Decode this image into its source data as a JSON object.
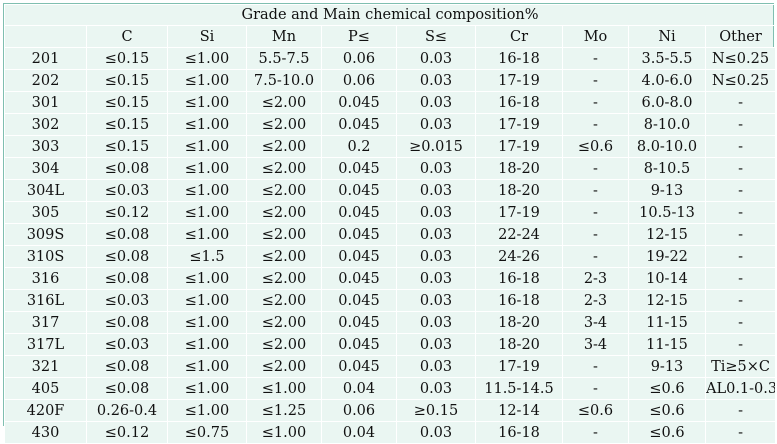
{
  "table": {
    "title": "Grade and Main chemical composition%",
    "headers": [
      "",
      "C",
      "Si",
      "Mn",
      "P≤",
      "S≤",
      "Cr",
      "Mo",
      "Ni",
      "Other"
    ],
    "rows": [
      [
        "201",
        "≤0.15",
        "≤1.00",
        "5.5-7.5",
        "0.06",
        "0.03",
        "16-18",
        "-",
        "3.5-5.5",
        "N≤0.25"
      ],
      [
        "202",
        "≤0.15",
        "≤1.00",
        "7.5-10.0",
        "0.06",
        "0.03",
        "17-19",
        "-",
        "4.0-6.0",
        "N≤0.25"
      ],
      [
        "301",
        "≤0.15",
        "≤1.00",
        "≤2.00",
        "0.045",
        "0.03",
        "16-18",
        "-",
        "6.0-8.0",
        "-"
      ],
      [
        "302",
        "≤0.15",
        "≤1.00",
        "≤2.00",
        "0.045",
        "0.03",
        "17-19",
        "-",
        "8-10.0",
        "-"
      ],
      [
        "303",
        "≤0.15",
        "≤1.00",
        "≤2.00",
        "0.2",
        "≥0.015",
        "17-19",
        "≤0.6",
        "8.0-10.0",
        "-"
      ],
      [
        "304",
        "≤0.08",
        "≤1.00",
        "≤2.00",
        "0.045",
        "0.03",
        "18-20",
        "-",
        "8-10.5",
        "-"
      ],
      [
        "304L",
        "≤0.03",
        "≤1.00",
        "≤2.00",
        "0.045",
        "0.03",
        "18-20",
        "-",
        "9-13",
        "-"
      ],
      [
        "305",
        "≤0.12",
        "≤1.00",
        "≤2.00",
        "0.045",
        "0.03",
        "17-19",
        "-",
        "10.5-13",
        "-"
      ],
      [
        "309S",
        "≤0.08",
        "≤1.00",
        "≤2.00",
        "0.045",
        "0.03",
        "22-24",
        "-",
        "12-15",
        "-"
      ],
      [
        "310S",
        "≤0.08",
        "≤1.5",
        "≤2.00",
        "0.045",
        "0.03",
        "24-26",
        "-",
        "19-22",
        "-"
      ],
      [
        "316",
        "≤0.08",
        "≤1.00",
        "≤2.00",
        "0.045",
        "0.03",
        "16-18",
        "2-3",
        "10-14",
        "-"
      ],
      [
        "316L",
        "≤0.03",
        "≤1.00",
        "≤2.00",
        "0.045",
        "0.03",
        "16-18",
        "2-3",
        "12-15",
        "-"
      ],
      [
        "317",
        "≤0.08",
        "≤1.00",
        "≤2.00",
        "0.045",
        "0.03",
        "18-20",
        "3-4",
        "11-15",
        "-"
      ],
      [
        "317L",
        "≤0.03",
        "≤1.00",
        "≤2.00",
        "0.045",
        "0.03",
        "18-20",
        "3-4",
        "11-15",
        "-"
      ],
      [
        "321",
        "≤0.08",
        "≤1.00",
        "≤2.00",
        "0.045",
        "0.03",
        "17-19",
        "-",
        "9-13",
        "Ti≥5×C"
      ],
      [
        "405",
        "≤0.08",
        "≤1.00",
        "≤1.00",
        "0.04",
        "0.03",
        "11.5-14.5",
        "-",
        "≤0.6",
        "AL0.1-0.3"
      ],
      [
        "420F",
        "0.26-0.4",
        "≤1.00",
        "≤1.25",
        "0.06",
        "≥0.15",
        "12-14",
        "≤0.6",
        "≤0.6",
        "-"
      ],
      [
        "430",
        "≤0.12",
        "≤0.75",
        "≤1.00",
        "0.04",
        "0.03",
        "16-18",
        "-",
        "≤0.6",
        "-"
      ]
    ]
  },
  "colors": {
    "cell_background": "#eaf6f2",
    "border": "#ffffff",
    "outer_border": "#7fbfb0"
  }
}
